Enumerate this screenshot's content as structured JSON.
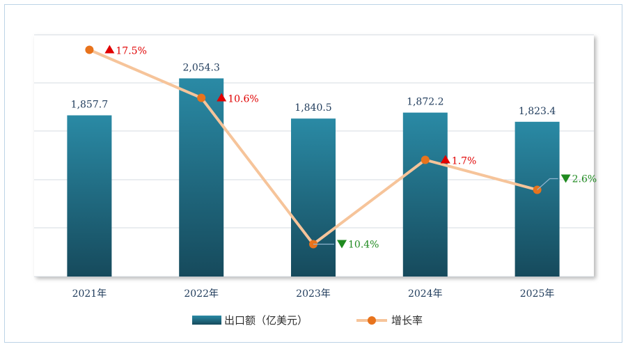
{
  "chart_data": {
    "type": "bar",
    "categories": [
      "2021年",
      "2022年",
      "2023年",
      "2024年",
      "2025年"
    ],
    "series": [
      {
        "name": "出口额（亿美元）",
        "type": "bar",
        "values": [
          1857.7,
          2054.3,
          1840.5,
          1872.2,
          1823.4
        ],
        "labels": [
          "1,857.7",
          "2,054.3",
          "1,840.5",
          "1,872.2",
          "1,823.4"
        ],
        "color": "#1f6f85"
      },
      {
        "name": "增长率",
        "type": "line",
        "values": [
          17.5,
          10.6,
          -10.4,
          1.7,
          -2.6
        ],
        "labels": [
          "17.5%",
          "10.6%",
          "10.4%",
          "1.7%",
          "2.6%"
        ],
        "directions": [
          "up",
          "up",
          "down",
          "up",
          "down"
        ],
        "color": "#f6c49a",
        "marker_color": "#e8731c"
      }
    ],
    "up_color": "#e00000",
    "down_color": "#1f8a1f",
    "legend_position": "bottom",
    "grid": true
  }
}
